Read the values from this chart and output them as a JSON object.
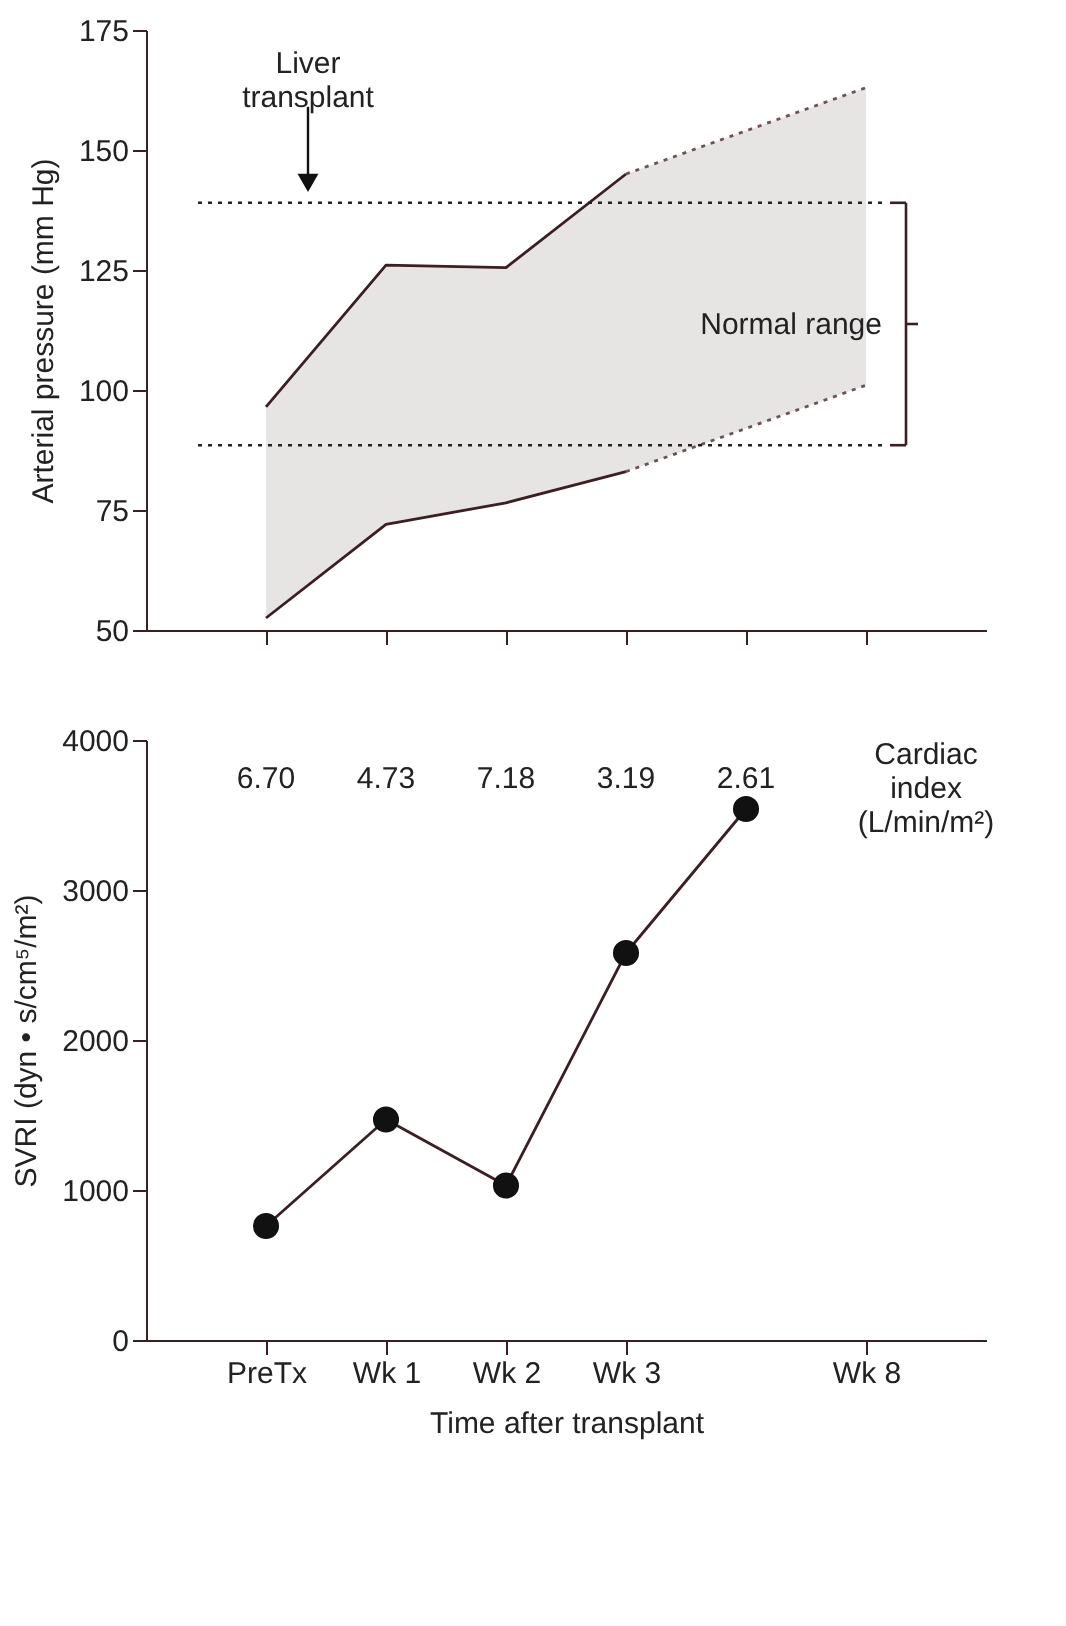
{
  "chart_data": [
    {
      "type": "area",
      "ylabel": "Arterial pressure (mm Hg)",
      "categories": [
        null,
        null,
        null,
        null,
        null,
        null
      ],
      "series": [
        {
          "type": "line",
          "color": "#3b1f22",
          "line_style": "solid",
          "values": [
            96.5,
            126,
            125.5,
            145,
            null,
            null
          ],
          "lower": [
            52.5,
            72,
            76.5,
            83,
            92,
            101
          ],
          "upper": [
            96.5,
            126,
            125.5,
            145,
            154,
            163
          ]
        },
        {
          "type": "line",
          "color": "#6e5255",
          "line_style": "dotted",
          "values": [
            null,
            null,
            null,
            145,
            154,
            163
          ]
        },
        {
          "type": "line",
          "color": "#3b1f22",
          "line_style": "solid",
          "values": [
            52.5,
            72,
            76.5,
            83,
            null,
            null
          ]
        },
        {
          "type": "line",
          "color": "#6e5255",
          "line_style": "dotted",
          "values": [
            null,
            null,
            null,
            83,
            92,
            101
          ]
        }
      ],
      "ylim": [
        50,
        175
      ],
      "yticks": [
        50,
        75,
        100,
        125,
        150,
        175
      ],
      "tick_labels": "y",
      "ref_lines": [
        {
          "axis": "y",
          "value": 139,
          "line_style": "dotted",
          "color": "#222222"
        },
        {
          "axis": "y",
          "value": 88.5,
          "line_style": "dotted",
          "color": "#222222"
        }
      ],
      "annotations": [
        {
          "text": "Liver\ntransplant",
          "y": 139
        },
        "Normal range"
      ]
    },
    {
      "type": "line",
      "xlabel": "Time after transplant",
      "ylabel": "SVRI (dyn • s/cm⁵/m²)",
      "categories": [
        "PreTx",
        "Wk 1",
        "Wk 2",
        "Wk 3",
        null,
        "Wk 8"
      ],
      "series": [
        {
          "color": "#3b1f22",
          "values": [
            760,
            1470,
            1030,
            2580,
            3540,
            null
          ]
        }
      ],
      "marker": "circle",
      "ylim": [
        0,
        4000
      ],
      "yticks": [
        0,
        1000,
        2000,
        3000,
        4000
      ],
      "annotations": [
        "6.70",
        "4.73",
        "7.18",
        "3.19",
        "2.61",
        "Cardiac\nindex\n(L/min/m²)"
      ]
    }
  ]
}
